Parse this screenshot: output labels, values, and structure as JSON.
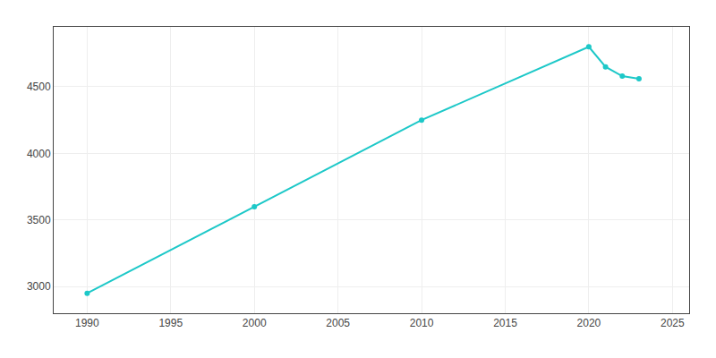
{
  "chart_data": {
    "type": "line",
    "x": [
      1990,
      2000,
      2010,
      2020,
      2021,
      2022,
      2023
    ],
    "values": [
      2950,
      3600,
      4250,
      4800,
      4650,
      4580,
      4560
    ],
    "color": "#1DC8C8",
    "marker": "circle",
    "xlim": [
      1988,
      2026
    ],
    "xticks": [
      1990,
      1995,
      2000,
      2005,
      2010,
      2015,
      2020,
      2025
    ],
    "ylim": [
      2800,
      4950
    ],
    "yticks": [
      3000,
      3500,
      4000,
      4500
    ],
    "grid": true
  }
}
